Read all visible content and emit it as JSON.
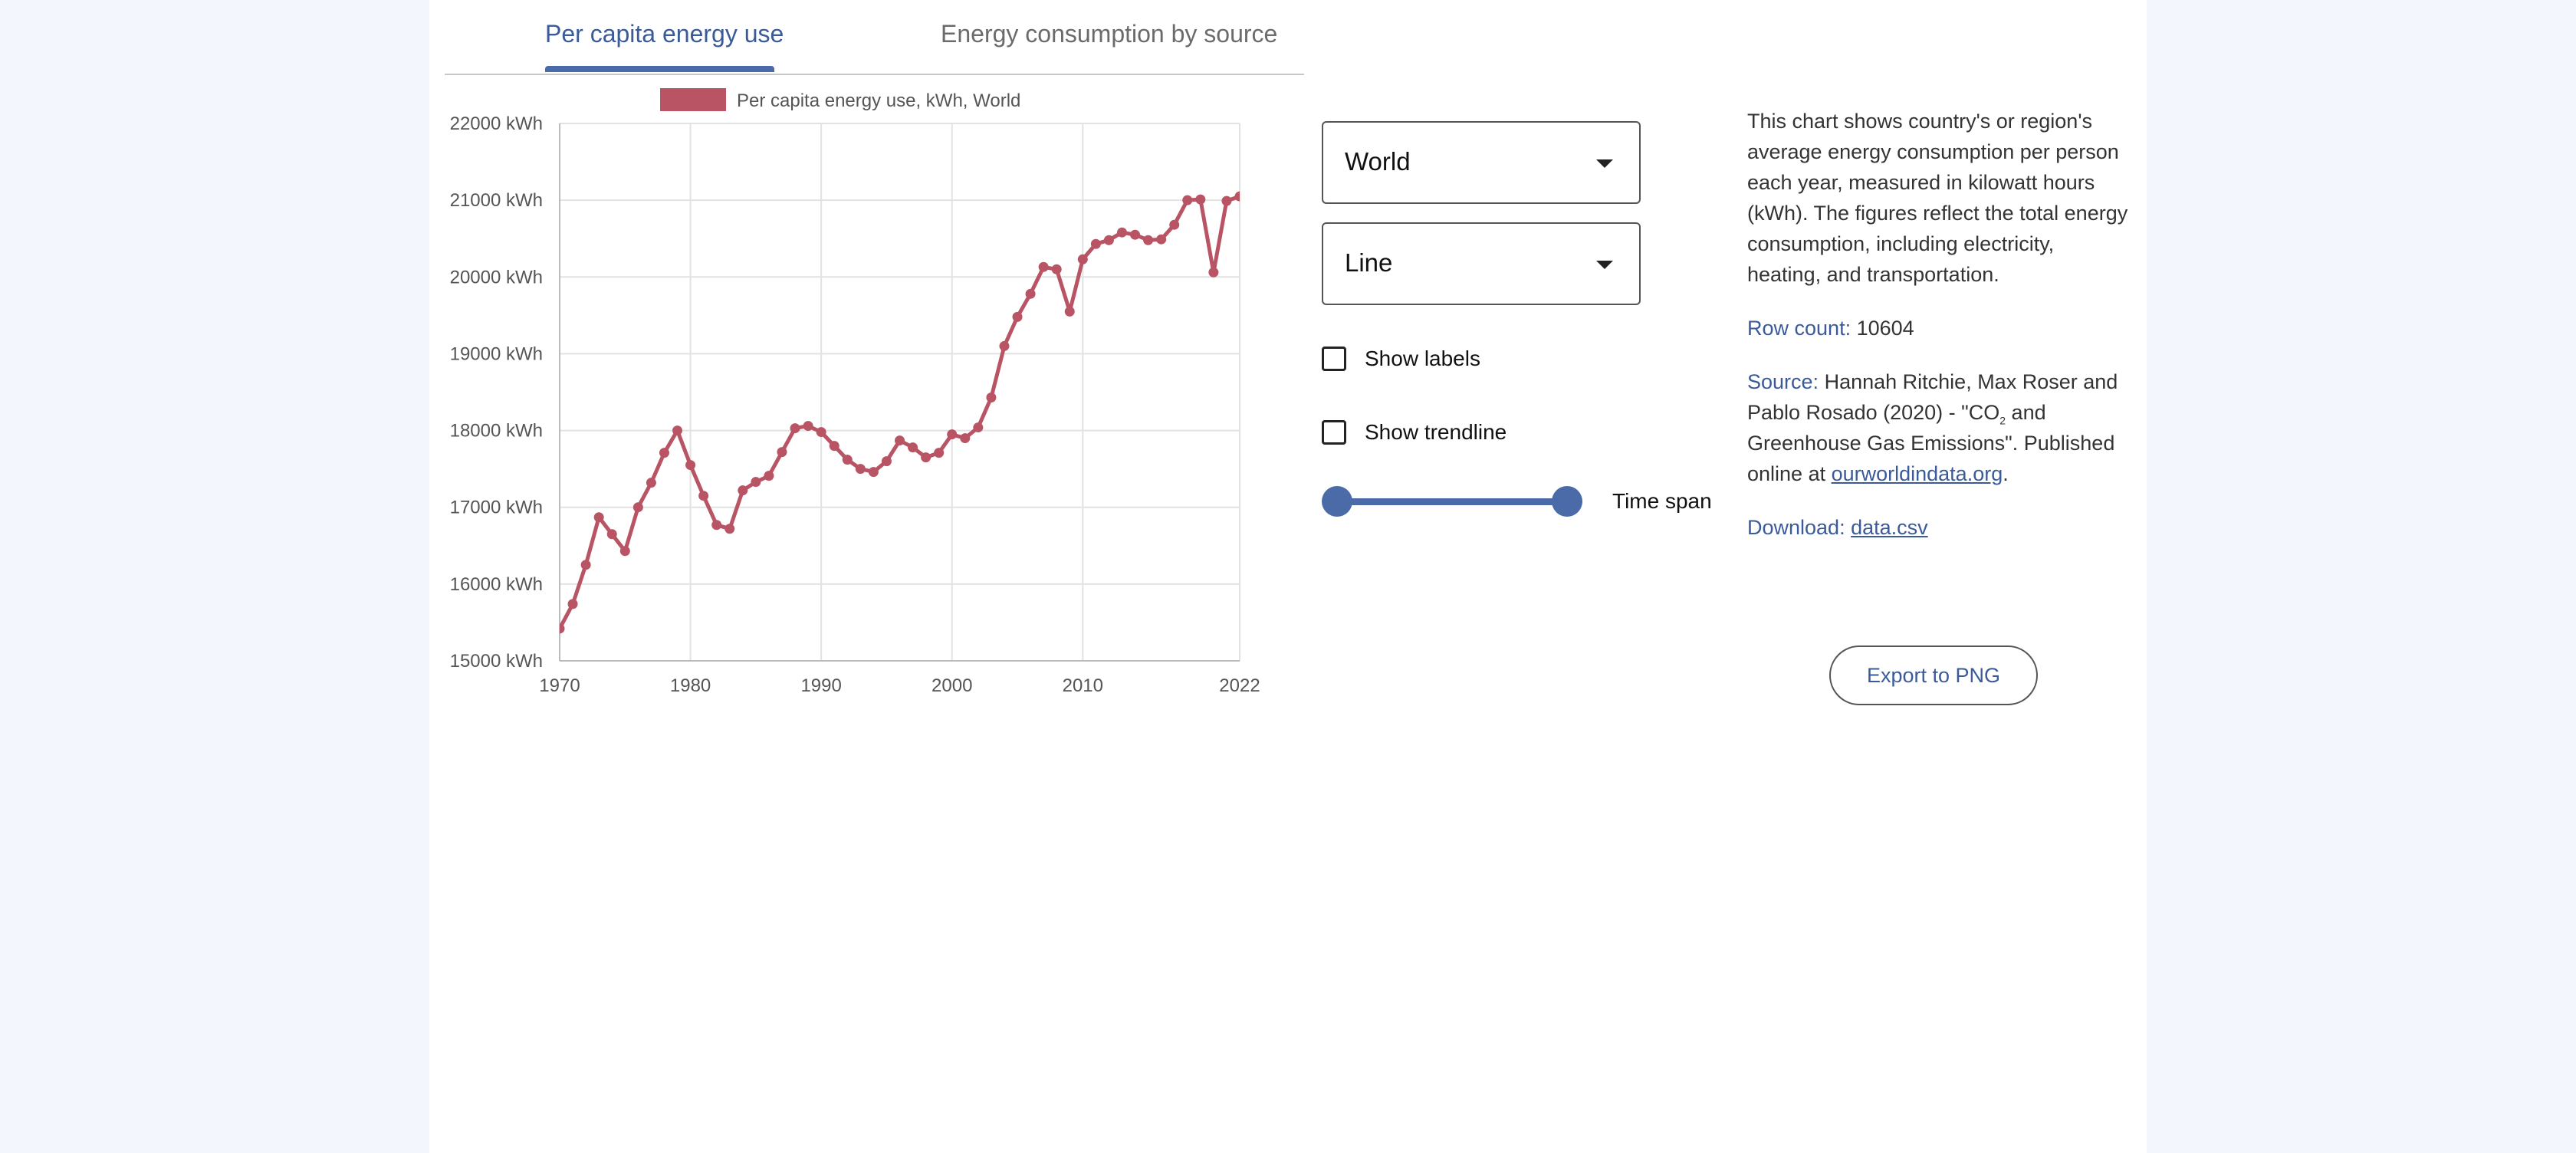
{
  "tabs": [
    {
      "label": "Per capita energy use",
      "active": true
    },
    {
      "label": "Energy consumption by source",
      "active": false
    }
  ],
  "controls": {
    "region_select": "World",
    "chart_type_select": "Line",
    "show_labels": "Show labels",
    "show_labels_checked": false,
    "show_trendline": "Show trendline",
    "show_trendline_checked": false,
    "time_span_label": "Time span",
    "time_span_range": [
      1970,
      2022
    ]
  },
  "info": {
    "description": "This chart shows country's or region's average energy consumption per person each year, measured in kilowatt hours (kWh). The figures reflect the total energy consumption, including electricity, heating, and transportation.",
    "row_count_label": "Row count:",
    "row_count": "10604",
    "source_label": "Source:",
    "source_text_a": "Hannah Ritchie, Max Roser and Pablo Rosado (2020) - \"CO",
    "source_sub": "2",
    "source_text_b": " and Greenhouse Gas Emissions\". Published online at ",
    "source_link": "ourworldindata.org",
    "source_end": ".",
    "download_label": "Download:",
    "download_link": "data.csv"
  },
  "export_button": "Export to PNG",
  "colors": {
    "accent": "#3a5a9a",
    "series": "#b85464"
  },
  "chart_data": {
    "type": "line",
    "legend": "Per capita energy use, kWh, World",
    "legend_position": "top-center",
    "xlim": [
      1970,
      2022
    ],
    "ylim": [
      15000,
      22000
    ],
    "x_ticks": [
      "1970",
      "1980",
      "1990",
      "2000",
      "2010",
      "2022"
    ],
    "y_ticks": [
      "15000 kWh",
      "16000 kWh",
      "17000 kWh",
      "18000 kWh",
      "19000 kWh",
      "20000 kWh",
      "21000 kWh",
      "22000 kWh"
    ],
    "grid": true,
    "x": [
      1970,
      1971,
      1972,
      1973,
      1974,
      1975,
      1976,
      1977,
      1978,
      1979,
      1980,
      1981,
      1982,
      1983,
      1984,
      1985,
      1986,
      1987,
      1988,
      1989,
      1990,
      1991,
      1992,
      1993,
      1994,
      1995,
      1996,
      1997,
      1998,
      1999,
      2000,
      2001,
      2002,
      2003,
      2004,
      2005,
      2006,
      2007,
      2008,
      2009,
      2010,
      2011,
      2012,
      2013,
      2014,
      2015,
      2016,
      2017,
      2018,
      2019,
      2020,
      2021,
      2022
    ],
    "y": [
      15420,
      15740,
      16250,
      16870,
      16650,
      16430,
      17000,
      17320,
      17710,
      18000,
      17550,
      17150,
      16770,
      16720,
      17220,
      17330,
      17410,
      17720,
      18030,
      18060,
      17980,
      17800,
      17620,
      17500,
      17460,
      17600,
      17870,
      17780,
      17650,
      17710,
      17950,
      17900,
      18040,
      18430,
      19100,
      19480,
      19780,
      20130,
      20100,
      19550,
      20230,
      20430,
      20480,
      20580,
      20550,
      20480,
      20490,
      20680,
      21000,
      21010,
      20060,
      20990,
      21050
    ]
  }
}
